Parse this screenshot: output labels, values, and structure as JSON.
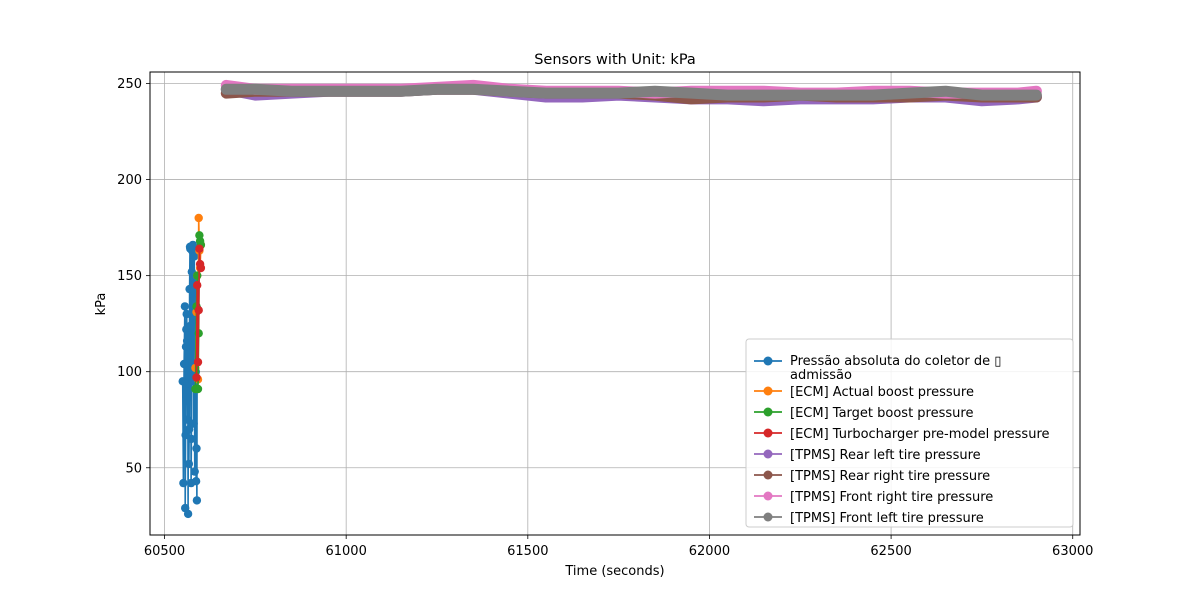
{
  "chart_data": {
    "type": "line",
    "title": "Sensors with Unit: kPa",
    "xlabel": "Time (seconds)",
    "ylabel": "kPa",
    "xlim": [
      60460,
      63020
    ],
    "ylim": [
      15,
      256
    ],
    "xticks": [
      60500,
      61000,
      61500,
      62000,
      62500,
      63000
    ],
    "yticks": [
      50,
      100,
      150,
      200,
      250
    ],
    "grid": true,
    "legend_position": "lower right",
    "series": [
      {
        "name": "Pressão absoluta do coletor de ▯ admissão",
        "legend_lines": [
          "Pressão absoluta do coletor de ▯",
          "admissão"
        ],
        "color": "#1f77b4",
        "x": [
          60550,
          60552,
          60554,
          60556,
          60557,
          60558,
          60559,
          60560,
          60561,
          60562,
          60563,
          60564,
          60565,
          60566,
          60567,
          60568,
          60569,
          60570,
          60571,
          60572,
          60573,
          60574,
          60575,
          60576,
          60577,
          60578,
          60579,
          60580,
          60581,
          60582,
          60583,
          60584,
          60585,
          60586,
          60587,
          60588,
          60589,
          60590
        ],
        "y": [
          95,
          42,
          104,
          134,
          29,
          67,
          113,
          122,
          130,
          116,
          75,
          94,
          26,
          119,
          52,
          70,
          143,
          165,
          164,
          124,
          42,
          65,
          152,
          163,
          95,
          166,
          137,
          73,
          142,
          160,
          48,
          148,
          131,
          100,
          43,
          60,
          33,
          133
        ]
      },
      {
        "name": "[ECM] Actual boost pressure",
        "color": "#ff7f0e",
        "x": [
          60585,
          60588,
          60590,
          60592,
          60594,
          60596,
          60598,
          60600
        ],
        "y": [
          102,
          131,
          150,
          96,
          180,
          163,
          154,
          166
        ]
      },
      {
        "name": "[ECM] Target boost pressure",
        "color": "#2ca02c",
        "x": [
          60585,
          60588,
          60590,
          60592,
          60594,
          60596,
          60598,
          60600
        ],
        "y": [
          91,
          134,
          150,
          91,
          120,
          171,
          168,
          166
        ]
      },
      {
        "name": "[ECM] Turbocharger pre-model pressure",
        "color": "#d62728",
        "x": [
          60588,
          60590,
          60592,
          60594,
          60596,
          60598,
          60600
        ],
        "y": [
          97,
          145,
          105,
          132,
          164,
          156,
          154
        ]
      },
      {
        "name": "[TPMS] Rear left tire pressure",
        "color": "#9467bd",
        "x": [
          60670,
          60750,
          60850,
          60950,
          61050,
          61150,
          61250,
          61350,
          61450,
          61550,
          61650,
          61750,
          61850,
          61950,
          62050,
          62150,
          62250,
          62350,
          62450,
          62550,
          62650,
          62750,
          62850,
          62900
        ],
        "y": [
          247,
          244,
          245,
          246,
          246,
          246,
          247,
          247,
          245,
          243,
          243,
          244,
          243,
          242,
          242,
          241,
          242,
          242,
          242,
          243,
          243,
          241,
          242,
          243
        ]
      },
      {
        "name": "[TPMS] Rear right tire pressure",
        "color": "#8c564b",
        "x": [
          60670,
          60750,
          60850,
          60950,
          61050,
          61150,
          61250,
          61350,
          61450,
          61550,
          61650,
          61750,
          61850,
          61950,
          62050,
          62150,
          62250,
          62350,
          62450,
          62550,
          62650,
          62750,
          62850,
          62900
        ],
        "y": [
          245,
          246,
          246,
          246,
          246,
          246,
          247,
          247,
          246,
          245,
          245,
          245,
          244,
          242,
          243,
          243,
          244,
          243,
          243,
          243,
          244,
          243,
          243,
          243
        ]
      },
      {
        "name": "[TPMS] Front right tire pressure",
        "color": "#e377c2",
        "x": [
          60670,
          60750,
          60850,
          60950,
          61050,
          61150,
          61250,
          61350,
          61450,
          61550,
          61650,
          61750,
          61850,
          61950,
          62050,
          62150,
          62250,
          62350,
          62450,
          62550,
          62650,
          62750,
          62850,
          62900
        ],
        "y": [
          249,
          247,
          247,
          247,
          247,
          247,
          248,
          249,
          247,
          246,
          246,
          246,
          245,
          246,
          246,
          246,
          245,
          245,
          246,
          246,
          245,
          245,
          245,
          246
        ]
      },
      {
        "name": "[TPMS] Front left tire pressure",
        "color": "#7f7f7f",
        "x": [
          60670,
          60750,
          60850,
          60950,
          61050,
          61150,
          61250,
          61350,
          61450,
          61550,
          61650,
          61750,
          61850,
          61950,
          62050,
          62150,
          62250,
          62350,
          62450,
          62550,
          62650,
          62750,
          62850,
          62900
        ],
        "y": [
          247,
          247,
          246,
          246,
          246,
          246,
          247,
          247,
          246,
          245,
          245,
          245,
          246,
          245,
          244,
          244,
          244,
          244,
          244,
          245,
          246,
          244,
          244,
          244
        ]
      }
    ]
  }
}
